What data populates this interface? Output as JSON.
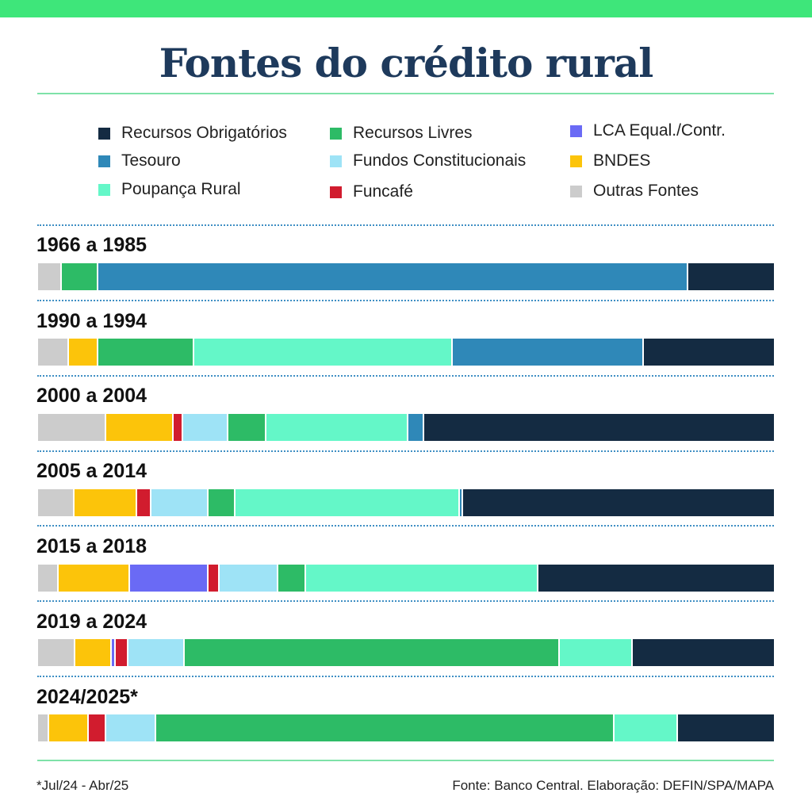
{
  "title": "Fontes do crédito rural",
  "legend": [
    {
      "key": "obrig",
      "label": "Recursos Obrigatórios",
      "color": "#142b42"
    },
    {
      "key": "tesouro",
      "label": "Tesouro",
      "color": "#2f88b8"
    },
    {
      "key": "poupanca",
      "label": "Poupança Rural",
      "color": "#64f7c8"
    },
    {
      "key": "livres",
      "label": "Recursos Livres",
      "color": "#2dbb66"
    },
    {
      "key": "fundos",
      "label": "Fundos Constitucionais",
      "color": "#9ee3f6"
    },
    {
      "key": "funcafe",
      "label": "Funcafé",
      "color": "#d11c2e"
    },
    {
      "key": "lca",
      "label": "LCA Equal./Contr.",
      "color": "#6a6af5"
    },
    {
      "key": "bndes",
      "label": "BNDES",
      "color": "#fcc40a"
    },
    {
      "key": "outras",
      "label": "Outras Fontes",
      "color": "#cccccc"
    }
  ],
  "chart_data": {
    "type": "bar",
    "orientation": "horizontal",
    "stacked": "100%",
    "categories": [
      "1966 a 1985",
      "1990 a 1994",
      "2000 a 2004",
      "2005 a 2014",
      "2015 a 2018",
      "2019 a 2024",
      "2024/2025*"
    ],
    "segment_order": [
      "outras",
      "bndes",
      "lca",
      "funcafe",
      "fundos",
      "livres",
      "poupanca",
      "tesouro",
      "obrig"
    ],
    "series": [
      {
        "name": "Outras Fontes",
        "key": "outras",
        "values": [
          3.0,
          4.0,
          9.1,
          4.7,
          2.6,
          4.8,
          1.3
        ]
      },
      {
        "name": "BNDES",
        "key": "bndes",
        "values": [
          0,
          4.0,
          9.1,
          8.6,
          9.7,
          5.0,
          5.4
        ]
      },
      {
        "name": "LCA Equal./Contr.",
        "key": "lca",
        "values": [
          0,
          0,
          0,
          0,
          10.6,
          0.6,
          0
        ]
      },
      {
        "name": "Funcafé",
        "key": "funcafe",
        "values": [
          0,
          0,
          1.3,
          1.9,
          1.6,
          1.7,
          2.4
        ]
      },
      {
        "name": "Fundos Constitucionais",
        "key": "fundos",
        "values": [
          0,
          0,
          6.2,
          7.8,
          7.9,
          7.6,
          6.7
        ]
      },
      {
        "name": "Recursos Livres",
        "key": "livres",
        "values": [
          5.0,
          13.0,
          5.1,
          3.6,
          3.8,
          51.0,
          62.3
        ]
      },
      {
        "name": "Poupança Rural",
        "key": "poupanca",
        "values": [
          0,
          35.1,
          19.3,
          30.5,
          31.6,
          9.9,
          8.6
        ]
      },
      {
        "name": "Tesouro",
        "key": "tesouro",
        "values": [
          80.2,
          26.0,
          2.2,
          0.4,
          0,
          0,
          0
        ]
      },
      {
        "name": "Recursos Obrigatórios",
        "key": "obrig",
        "values": [
          11.8,
          17.9,
          47.7,
          42.5,
          32.2,
          19.4,
          13.3
        ]
      }
    ]
  },
  "footnote": "*Jul/24 - Abr/25",
  "source": "Fonte: Banco Central. Elaboração: DEFIN/SPA/MAPA"
}
